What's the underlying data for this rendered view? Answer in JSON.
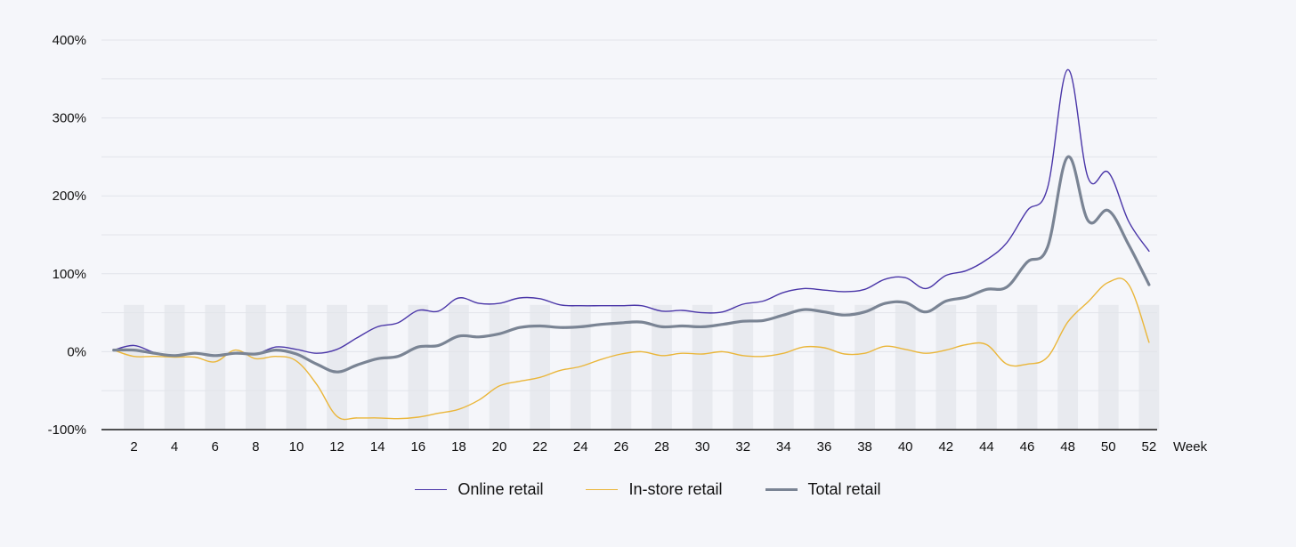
{
  "chart_data": {
    "type": "line",
    "xlabel": "Week",
    "ylabel": "",
    "xlim": [
      1,
      52
    ],
    "ylim": [
      -100,
      400
    ],
    "y_ticks": [
      -100,
      0,
      100,
      200,
      300,
      400
    ],
    "y_tick_labels": [
      "-100%",
      "0%",
      "100%",
      "200%",
      "300%",
      "400%"
    ],
    "x_ticks": [
      2,
      4,
      6,
      8,
      10,
      12,
      14,
      16,
      18,
      20,
      22,
      24,
      26,
      28,
      30,
      32,
      34,
      36,
      38,
      40,
      42,
      44,
      46,
      48,
      50,
      52
    ],
    "x_tick_labels": [
      "2",
      "4",
      "6",
      "8",
      "10",
      "12",
      "14",
      "16",
      "18",
      "20",
      "22",
      "24",
      "26",
      "28",
      "30",
      "32",
      "34",
      "36",
      "38",
      "40",
      "42",
      "44",
      "46",
      "48",
      "50",
      "52"
    ],
    "grid": true,
    "alternating_week_bands": true,
    "legend_position": "bottom",
    "x": [
      1,
      2,
      3,
      4,
      5,
      6,
      7,
      8,
      9,
      10,
      11,
      12,
      13,
      14,
      15,
      16,
      17,
      18,
      19,
      20,
      21,
      22,
      23,
      24,
      25,
      26,
      27,
      28,
      29,
      30,
      31,
      32,
      33,
      34,
      35,
      36,
      37,
      38,
      39,
      40,
      41,
      42,
      43,
      44,
      45,
      46,
      47,
      48,
      49,
      50,
      51,
      52
    ],
    "series": [
      {
        "name": "Online retail",
        "color": "#4a36a8",
        "stroke": "thin",
        "values": [
          2,
          8,
          -1,
          -5,
          -2,
          -5,
          -2,
          -3,
          6,
          3,
          -2,
          3,
          18,
          32,
          37,
          53,
          52,
          69,
          62,
          62,
          69,
          68,
          60,
          59,
          59,
          59,
          59,
          52,
          53,
          50,
          51,
          61,
          65,
          76,
          81,
          79,
          77,
          80,
          93,
          95,
          81,
          98,
          104,
          118,
          140,
          181,
          210,
          362,
          223,
          230,
          167,
          129
        ]
      },
      {
        "name": "In-store retail",
        "color": "#eab63a",
        "stroke": "thin",
        "values": [
          2,
          -6,
          -6,
          -7,
          -7,
          -13,
          2,
          -9,
          -6,
          -12,
          -42,
          -83,
          -85,
          -85,
          -86,
          -84,
          -79,
          -74,
          -62,
          -44,
          -38,
          -33,
          -24,
          -19,
          -10,
          -3,
          0,
          -5,
          -2,
          -3,
          0,
          -5,
          -6,
          -2,
          6,
          5,
          -3,
          -2,
          7,
          3,
          -2,
          2,
          9,
          9,
          -16,
          -16,
          -7,
          38,
          64,
          89,
          86,
          12
        ]
      },
      {
        "name": "Total retail",
        "color": "#7a8494",
        "stroke": "thick",
        "values": [
          2,
          2,
          -2,
          -5,
          -2,
          -5,
          -2,
          -3,
          2,
          -3,
          -16,
          -26,
          -17,
          -9,
          -6,
          6,
          8,
          20,
          19,
          23,
          31,
          33,
          31,
          32,
          35,
          37,
          38,
          32,
          33,
          32,
          35,
          39,
          40,
          47,
          54,
          51,
          47,
          51,
          62,
          63,
          51,
          65,
          70,
          80,
          83,
          115,
          134,
          250,
          168,
          181,
          137,
          86
        ]
      }
    ]
  }
}
